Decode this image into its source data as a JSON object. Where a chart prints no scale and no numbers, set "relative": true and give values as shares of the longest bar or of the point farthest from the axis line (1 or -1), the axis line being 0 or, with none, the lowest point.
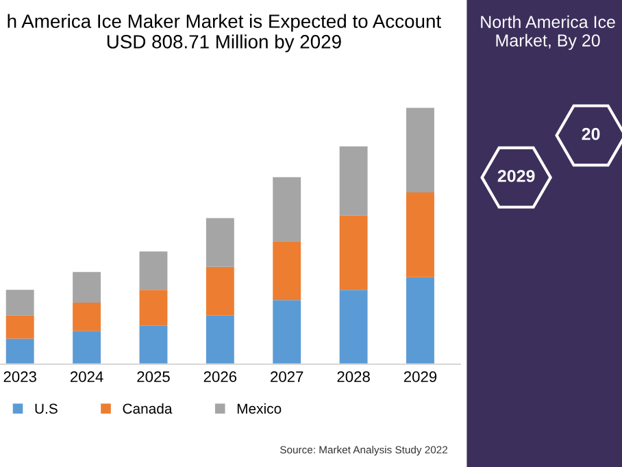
{
  "chart_data": {
    "type": "bar",
    "title": "h America Ice Maker Market is Expected to Account\nUSD 808.71 Million by 2029",
    "categories": [
      "2023",
      "2024",
      "2025",
      "2026",
      "2027",
      "2028",
      "2029"
    ],
    "stacked": true,
    "relative": true,
    "legend": "bottom left",
    "series": [
      {
        "name": "U.S",
        "color": "#5b9bd5",
        "values": [
          0.1,
          0.13,
          0.15,
          0.19,
          0.25,
          0.29,
          0.34
        ]
      },
      {
        "name": "Canada",
        "color": "#ed7d31",
        "values": [
          0.09,
          0.11,
          0.14,
          0.19,
          0.23,
          0.29,
          0.33
        ]
      },
      {
        "name": "Mexico",
        "color": "#a5a5a5",
        "values": [
          0.1,
          0.12,
          0.15,
          0.19,
          0.25,
          0.27,
          0.33
        ]
      }
    ],
    "annotations": [
      "Source: Market Analysis Study 2022",
      "North America Ice\nMarket, By 20",
      "2029",
      "20"
    ]
  }
}
